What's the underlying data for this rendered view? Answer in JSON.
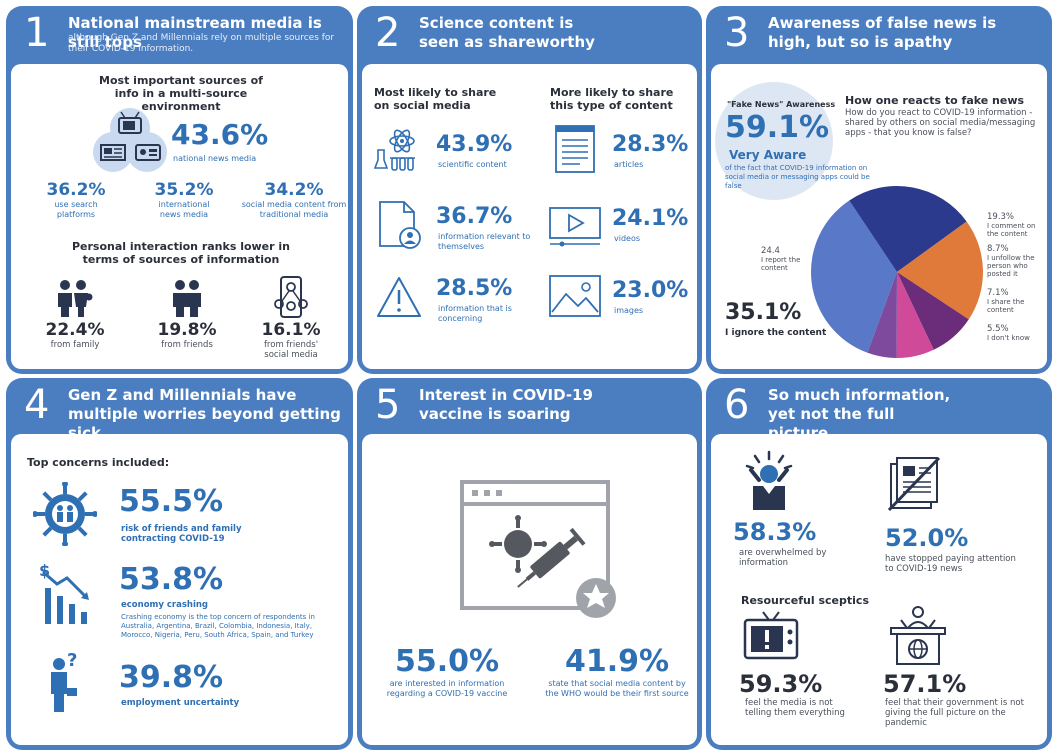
{
  "p1": {
    "num": "1",
    "title": "National mainstream media is still tops",
    "subtitle": "although Gen Z and Millennials rely on multiple sources for their COVID-19 information.",
    "heading1": "Most important sources of info in a multi-source environment",
    "main_value": "43.6%",
    "main_label": "national news media",
    "stats": [
      {
        "value": "36.2%",
        "label": "use search platforms"
      },
      {
        "value": "35.2%",
        "label": "international news media"
      },
      {
        "value": "34.2%",
        "label": "social media content from traditional media"
      }
    ],
    "heading2": "Personal interaction ranks lower in terms of sources of information",
    "personal": [
      {
        "value": "22.4%",
        "label": "from family"
      },
      {
        "value": "19.8%",
        "label": "from friends"
      },
      {
        "value": "16.1%",
        "label": "from friends' social media"
      }
    ]
  },
  "p2": {
    "num": "2",
    "title": "Science content is seen as shareworthy",
    "col1_heading": "Most likely to share on social media",
    "col2_heading": "More likely to share this type of content",
    "col1": [
      {
        "value": "43.9%",
        "label": "scientific content"
      },
      {
        "value": "36.7%",
        "label": "information relevant to themselves"
      },
      {
        "value": "28.5%",
        "label": "information that is concerning"
      }
    ],
    "col2": [
      {
        "value": "28.3%",
        "label": "articles"
      },
      {
        "value": "24.1%",
        "label": "videos"
      },
      {
        "value": "23.0%",
        "label": "images"
      }
    ]
  },
  "p3": {
    "num": "3",
    "title": "Awareness of false news is high, but so is apathy",
    "awareness_label": "\"Fake News\" Awareness",
    "awareness_value": "59.1%",
    "awareness_level": "Very Aware",
    "awareness_desc": "of the fact that COVID-19 information on social media or messaging apps could be false",
    "pie_heading": "How one reacts to fake news",
    "pie_question": "How do you react to COVID-19 information - shared by others on social media/messaging apps - that you know is false?",
    "ignore_value": "35.1%",
    "ignore_label": "I ignore the content",
    "labels": {
      "comment_value": "19.3%",
      "comment_label": "I comment on the content",
      "unfollow_value": "8.7%",
      "unfollow_label": "I unfollow the person who posted it",
      "share_value": "7.1%",
      "share_label": "I share the content",
      "dontknow_value": "5.5%",
      "dontknow_label": "I don't know",
      "report_value": "24.4",
      "report_label": "I report the content"
    },
    "colors": {
      "ignore": "#5a78c8",
      "report": "#2b3a8c",
      "comment": "#e07a3a",
      "unfollow": "#6b2c7a",
      "share": "#d04a9a",
      "dontknow": "#7d4a9e"
    }
  },
  "chart_data": {
    "type": "pie",
    "title": "How one reacts to fake news",
    "categories": [
      "I ignore the content",
      "I report the content",
      "I comment on the content",
      "I unfollow the person who posted it",
      "I share the content",
      "I don't know"
    ],
    "values": [
      35.1,
      24.4,
      19.3,
      8.7,
      7.1,
      5.5
    ]
  },
  "p4": {
    "num": "4",
    "title": "Gen Z and Millennials have multiple worries beyond getting sick",
    "heading": "Top concerns included:",
    "items": [
      {
        "value": "55.5%",
        "label": "risk of friends and family contracting COVID-19",
        "note": ""
      },
      {
        "value": "53.8%",
        "label": "economy crashing",
        "note": "Crashing economy is the top concern of respondents in Australia, Argentina, Brazil, Colombia, Indonesia, Italy, Morocco, Nigeria, Peru, South Africa, Spain, and Turkey"
      },
      {
        "value": "39.8%",
        "label": "employment uncertainty",
        "note": ""
      }
    ]
  },
  "p5": {
    "num": "5",
    "title": "Interest in COVID-19 vaccine is soaring",
    "stats": [
      {
        "value": "55.0%",
        "label": "are interested in information regarding a COVID-19 vaccine"
      },
      {
        "value": "41.9%",
        "label": "state that social media content by the WHO would be their first source"
      }
    ]
  },
  "p6": {
    "num": "6",
    "title": "So much information, yet not the full picture",
    "top": [
      {
        "value": "58.3%",
        "label": "are overwhelmed by information"
      },
      {
        "value": "52.0%",
        "label": "have stopped paying attention to COVID-19 news"
      }
    ],
    "heading": "Resourceful sceptics",
    "bottom": [
      {
        "value": "59.3%",
        "label": "feel the media is not telling them everything"
      },
      {
        "value": "57.1%",
        "label": "feel that their government is not giving the full picture on the pandemic"
      }
    ]
  },
  "icons": [
    "tv-icon",
    "newspaper-icon",
    "radio-icon",
    "family-icon",
    "friends-icon",
    "social-network-icon",
    "science-icon",
    "document-user-icon",
    "warning-icon",
    "article-icon",
    "video-icon",
    "image-icon",
    "virus-family-icon",
    "economy-chart-icon",
    "worried-person-icon",
    "vaccine-browser-icon",
    "overwhelmed-person-icon",
    "no-news-icon",
    "tv-alert-icon",
    "government-podium-icon"
  ]
}
